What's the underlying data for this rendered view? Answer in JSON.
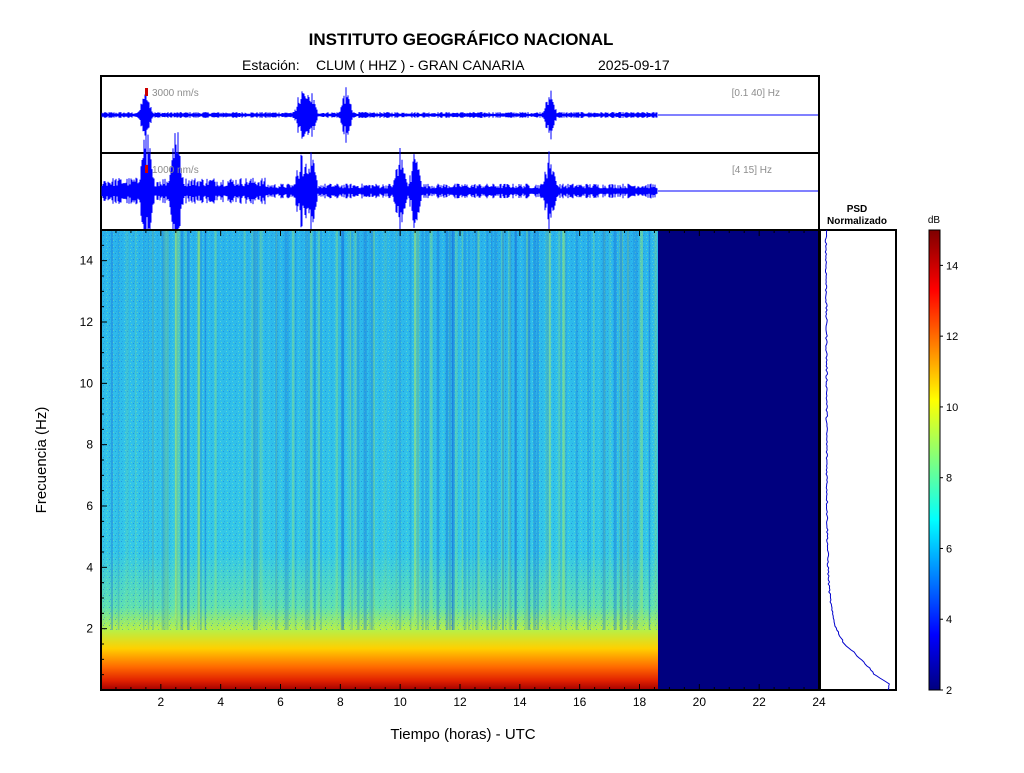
{
  "header": {
    "title": "INSTITUTO GEOGRÁFICO NACIONAL",
    "station_label": "Estación:",
    "station": "CLUM ( HHZ ) - GRAN CANARIA",
    "date": "2025-09-17"
  },
  "colors": {
    "trace": "#0000ff",
    "scale_bar": "#cc0000",
    "no_data": "#00007f",
    "annotation_gray": "#8c8c8c"
  },
  "chart_data": [
    {
      "type": "line",
      "panel": "waveform-broadband",
      "scale_label": "3000 nm/s",
      "filter_label": "[0.1 40] Hz",
      "x_range_hours": [
        0,
        24
      ],
      "data_end_hours": 18.6,
      "events_hours": [
        1.5,
        6.7,
        7.0,
        8.2,
        15.0
      ]
    },
    {
      "type": "line",
      "panel": "waveform-filtered",
      "scale_label": "1000 nm/s",
      "filter_label": "[4 15] Hz",
      "x_range_hours": [
        0,
        24
      ],
      "data_end_hours": 18.6,
      "events_hours": [
        1.5,
        2.5,
        6.7,
        7.0,
        10.0,
        10.5,
        15.0
      ]
    },
    {
      "type": "heatmap",
      "panel": "spectrogram",
      "xlabel": "Tiempo (horas) - UTC",
      "ylabel": "Frecuencia  (Hz)",
      "xlim": [
        0,
        24
      ],
      "ylim": [
        0,
        15
      ],
      "x_ticks": [
        "2",
        "4",
        "6",
        "8",
        "10",
        "12",
        "14",
        "16",
        "18",
        "20",
        "22",
        "24"
      ],
      "y_ticks": [
        "2",
        "4",
        "6",
        "8",
        "10",
        "12",
        "14"
      ],
      "data_end_hours": 18.6,
      "dominant_band_hz": [
        0,
        2
      ],
      "dominant_level_db": 12
    },
    {
      "type": "line",
      "panel": "psd",
      "title_line1": "PSD",
      "title_line2": "Normalizado",
      "freq_hz": [
        0.2,
        0.5,
        1.0,
        1.5,
        2.0,
        2.5,
        3.0,
        3.5,
        4.0,
        5.0,
        6.0,
        8.0,
        10.0,
        12.0,
        14.0,
        15.0
      ],
      "value_norm": [
        0.95,
        0.75,
        0.55,
        0.3,
        0.18,
        0.12,
        0.09,
        0.07,
        0.06,
        0.05,
        0.045,
        0.04,
        0.04,
        0.035,
        0.03,
        0.03
      ]
    },
    {
      "type": "heatmap",
      "panel": "colorbar",
      "unit": "dB",
      "range": [
        2,
        15
      ],
      "ticks": [
        "2",
        "4",
        "6",
        "8",
        "10",
        "12",
        "14"
      ]
    }
  ]
}
